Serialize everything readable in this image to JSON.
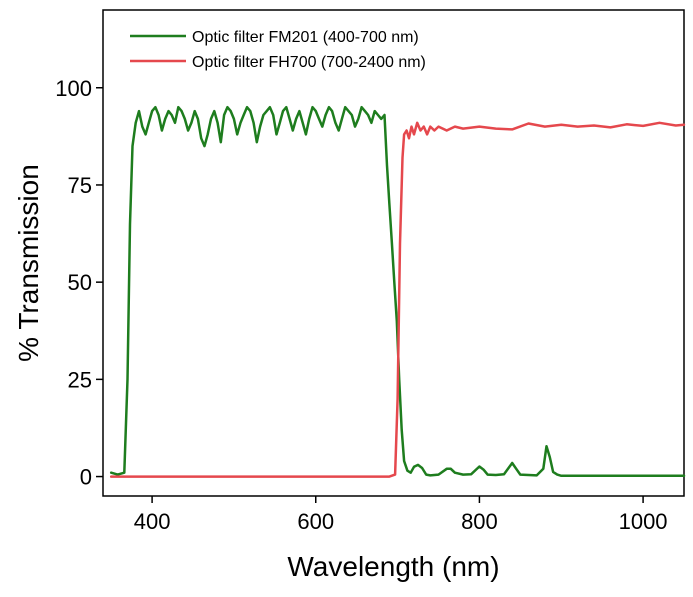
{
  "chart_data": {
    "type": "line",
    "title": "",
    "xlabel": "Wavelength (nm)",
    "ylabel": "% Transmission",
    "xlim": [
      340,
      1050
    ],
    "ylim": [
      -5,
      120
    ],
    "xticks": [
      400,
      600,
      800,
      1000
    ],
    "yticks": [
      0,
      25,
      50,
      75,
      100
    ],
    "legend_position": "top-left",
    "grid": false,
    "series": [
      {
        "name": "Optic filter FM201 (400-700 nm)",
        "color": "#1e7d1e",
        "x": [
          350,
          358,
          366,
          370,
          373,
          376,
          380,
          384,
          388,
          392,
          396,
          400,
          404,
          408,
          412,
          416,
          420,
          424,
          428,
          432,
          436,
          440,
          444,
          448,
          452,
          456,
          460,
          464,
          468,
          472,
          476,
          480,
          484,
          488,
          492,
          496,
          500,
          504,
          508,
          512,
          516,
          520,
          524,
          528,
          532,
          536,
          540,
          544,
          548,
          552,
          556,
          560,
          564,
          568,
          572,
          576,
          580,
          584,
          588,
          592,
          596,
          600,
          604,
          608,
          612,
          616,
          620,
          624,
          628,
          632,
          636,
          640,
          644,
          648,
          652,
          656,
          660,
          664,
          668,
          672,
          676,
          680,
          684,
          687,
          690,
          693,
          696,
          699,
          702,
          705,
          708,
          712,
          716,
          720,
          725,
          730,
          735,
          740,
          750,
          760,
          765,
          770,
          780,
          790,
          800,
          805,
          810,
          820,
          830,
          840,
          845,
          850,
          860,
          870,
          878,
          882,
          886,
          890,
          895,
          900,
          920,
          950,
          1000,
          1050
        ],
        "y": [
          1,
          0.5,
          1,
          25,
          65,
          85,
          91,
          94,
          90,
          88,
          91,
          94,
          95,
          93,
          89,
          92,
          94,
          93,
          91,
          95,
          94,
          92,
          89,
          91,
          94,
          92,
          87,
          85,
          88,
          92,
          94,
          91,
          86,
          93,
          95,
          94,
          92,
          88,
          91,
          93,
          95,
          94,
          91,
          86,
          90,
          93,
          94,
          95,
          93,
          88,
          91,
          94,
          95,
          92,
          89,
          92,
          94,
          91,
          88,
          92,
          95,
          94,
          92,
          90,
          93,
          95,
          94,
          91,
          89,
          92,
          95,
          94,
          93,
          90,
          92,
          95,
          94,
          93,
          91,
          94,
          93,
          92,
          93,
          80,
          70,
          60,
          50,
          40,
          25,
          12,
          4,
          1.5,
          1,
          2.5,
          3,
          2.2,
          0.5,
          0.3,
          0.5,
          2,
          2,
          1,
          0.5,
          0.6,
          2.6,
          1.8,
          0.5,
          0.4,
          0.6,
          3.5,
          2,
          0.5,
          0.4,
          0.3,
          2,
          7.8,
          5,
          1.2,
          0.5,
          0.2,
          0.2,
          0.2,
          0.2,
          0.2
        ]
      },
      {
        "name": "Optic filter FH700 (700-2400 nm)",
        "color": "#e5484d",
        "x": [
          350,
          690,
          697,
          700,
          703,
          706,
          708,
          711,
          714,
          717,
          720,
          724,
          728,
          732,
          736,
          740,
          745,
          750,
          760,
          770,
          780,
          800,
          820,
          840,
          860,
          880,
          900,
          920,
          940,
          960,
          980,
          1000,
          1020,
          1040,
          1050
        ],
        "y": [
          0,
          0,
          0.5,
          20,
          60,
          82,
          88,
          89,
          87,
          90,
          88,
          91,
          89,
          90,
          88,
          90,
          89,
          90,
          89,
          90,
          89.5,
          90,
          89.5,
          89.3,
          90.8,
          90,
          90.5,
          90,
          90.3,
          89.8,
          90.6,
          90.2,
          91,
          90.3,
          90.5
        ]
      }
    ]
  }
}
